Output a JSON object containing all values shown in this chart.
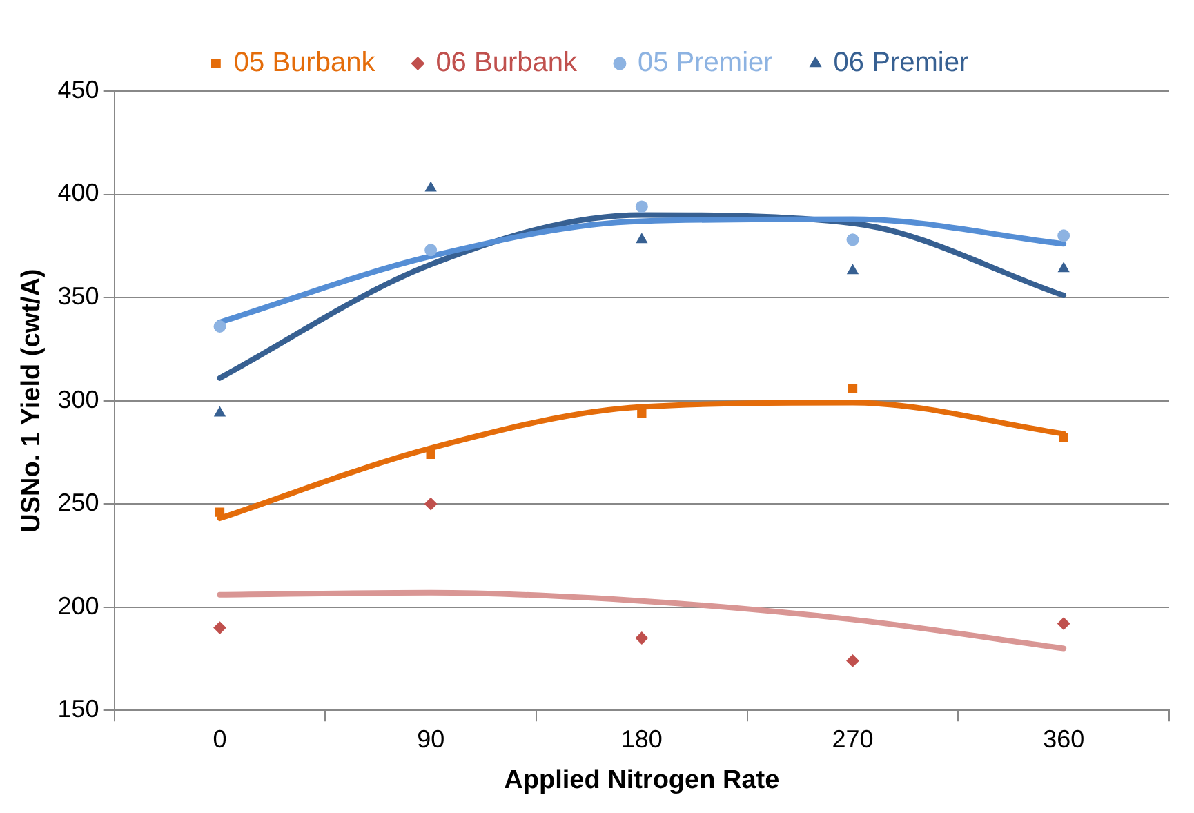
{
  "chart_data": {
    "type": "line",
    "xlabel": "Applied Nitrogen Rate",
    "ylabel": "USNo. 1 Yield (cwt/A)",
    "categories": [
      "0",
      "90",
      "180",
      "270",
      "360"
    ],
    "ylim": [
      150,
      450
    ],
    "yticks": [
      150,
      200,
      250,
      300,
      350,
      400,
      450
    ],
    "grid": "y",
    "legend": "top",
    "series": [
      {
        "name": "05 Burbank",
        "type": "scatter",
        "marker": "square",
        "color": "#e46c0a",
        "values": [
          246,
          274,
          294,
          306,
          282
        ]
      },
      {
        "name": "06 Burbank",
        "type": "scatter",
        "marker": "diamond",
        "color": "#c0504d",
        "values": [
          190,
          250,
          185,
          174,
          192
        ]
      },
      {
        "name": "05 Premier",
        "type": "scatter",
        "marker": "circle",
        "color": "#8db3e2",
        "values": [
          336,
          373,
          394,
          378,
          380
        ]
      },
      {
        "name": "06 Premier",
        "type": "scatter",
        "marker": "triangle",
        "color": "#376092",
        "values": [
          294,
          403,
          378,
          363,
          364
        ]
      },
      {
        "marker": "none",
        "color": "#e46c0a",
        "values": [
          243,
          277,
          297,
          299,
          284
        ]
      },
      {
        "marker": "none",
        "color": "#d99694",
        "values": [
          206,
          207,
          203,
          194,
          180
        ]
      },
      {
        "marker": "none",
        "color": "#558ed5",
        "values": [
          338,
          370,
          387,
          388,
          376
        ]
      },
      {
        "marker": "none",
        "color": "#376092",
        "values": [
          311,
          366,
          390,
          386,
          351
        ]
      }
    ]
  }
}
